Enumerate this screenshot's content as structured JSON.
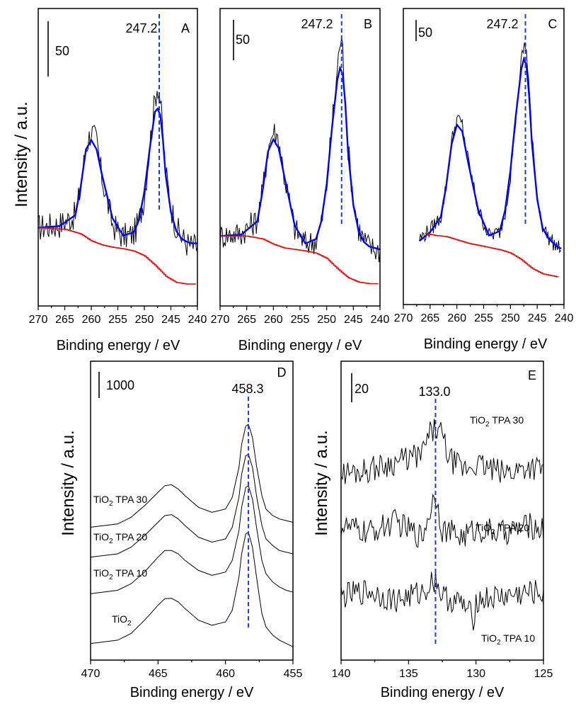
{
  "figure": {
    "ylabel": "Intensity / a.u.",
    "xlabel": "Binding energy / eV"
  },
  "chart_data": [
    {
      "id": "A",
      "type": "line",
      "panel_label": "A",
      "xlabel": "Binding energy / eV",
      "ylabel": "Intensity / a.u.",
      "xlim": [
        270,
        240
      ],
      "xticks": [
        270,
        265,
        260,
        255,
        250,
        245,
        240
      ],
      "scale_bar_label": "50",
      "peak_label": "247.2",
      "peak_x": 247.2,
      "series": [
        {
          "color": "#000000",
          "style": "raw spectrum",
          "x": [
            270,
            266,
            263,
            262,
            261,
            260,
            259,
            258,
            256,
            254,
            252,
            251,
            250,
            249,
            248,
            247.5,
            247,
            246.5,
            246,
            245,
            244,
            243,
            242,
            241,
            240
          ],
          "y": [
            10,
            12,
            18,
            35,
            62,
            72,
            65,
            42,
            12,
            4,
            6,
            14,
            30,
            62,
            92,
            102,
            92,
            68,
            46,
            24,
            10,
            4,
            0,
            -2,
            -2
          ]
        },
        {
          "color": "#0000ff",
          "style": "fitted envelope",
          "x": [
            270,
            266,
            263,
            262,
            261,
            260,
            259,
            258,
            256,
            254,
            252,
            251,
            250,
            249,
            248,
            247.5,
            247,
            246.5,
            246,
            245,
            244,
            243,
            242,
            241,
            240
          ],
          "y": [
            10,
            11,
            18,
            36,
            60,
            66,
            60,
            44,
            16,
            5,
            7,
            15,
            33,
            60,
            84,
            86,
            82,
            66,
            44,
            20,
            8,
            3,
            1,
            0,
            0
          ]
        },
        {
          "color": "#dd1111",
          "style": "background",
          "x": [
            270,
            265,
            262,
            260,
            258,
            256,
            254,
            252,
            250,
            248,
            246,
            244,
            242,
            240
          ],
          "y": [
            10,
            9,
            6,
            1.5,
            -1,
            -2.5,
            -3.5,
            -5,
            -8,
            -14,
            -21,
            -25,
            -26,
            -26
          ]
        }
      ]
    },
    {
      "id": "B",
      "type": "line",
      "panel_label": "B",
      "xlabel": "Binding energy / eV",
      "ylabel": "Intensity / a.u.",
      "xlim": [
        270,
        240
      ],
      "xticks": [
        270,
        265,
        260,
        255,
        250,
        245,
        240
      ],
      "scale_bar_label": "50",
      "peak_label": "247.2",
      "peak_x": 247.2,
      "series": [
        {
          "color": "#000000",
          "style": "raw spectrum",
          "x": [
            270,
            266,
            263,
            262,
            261,
            260,
            259,
            258,
            256,
            254,
            252,
            251,
            250,
            249,
            248,
            247.5,
            247,
            246.5,
            246,
            245,
            244,
            243,
            242,
            241,
            240
          ],
          "y": [
            7,
            9,
            18,
            38,
            66,
            78,
            72,
            48,
            12,
            2,
            4,
            15,
            40,
            82,
            118,
            140,
            132,
            100,
            66,
            32,
            12,
            4,
            0,
            -2,
            -3
          ]
        },
        {
          "color": "#0000ff",
          "style": "fitted envelope",
          "x": [
            270,
            266,
            263,
            262,
            261,
            260,
            259,
            258,
            256,
            254,
            252,
            251,
            250,
            249,
            248,
            247.5,
            247,
            246.5,
            246,
            245,
            244,
            243,
            242,
            241,
            240
          ],
          "y": [
            7,
            8,
            17,
            38,
            64,
            72,
            66,
            48,
            14,
            2,
            5,
            17,
            42,
            80,
            112,
            120,
            116,
            96,
            64,
            28,
            10,
            3,
            0,
            -1,
            -2
          ]
        },
        {
          "color": "#dd1111",
          "style": "background",
          "x": [
            270,
            265,
            262,
            260,
            258,
            256,
            254,
            252,
            250,
            248,
            246,
            244,
            242,
            240
          ],
          "y": [
            7,
            7,
            5,
            1.5,
            -1,
            -2,
            -3,
            -4.5,
            -8,
            -15,
            -21,
            -24,
            -25,
            -25
          ]
        }
      ]
    },
    {
      "id": "C",
      "type": "line",
      "panel_label": "C",
      "xlabel": "Binding energy / eV",
      "ylabel": "Intensity / a.u.",
      "xlim": [
        270,
        240
      ],
      "xticks": [
        270,
        265,
        260,
        255,
        250,
        245,
        240
      ],
      "scale_bar_label": "50",
      "peak_label": "247.2",
      "peak_x": 247.2,
      "series": [
        {
          "color": "#000000",
          "style": "raw spectrum",
          "x": [
            267,
            265,
            263,
            262,
            261,
            260,
            259,
            258,
            256,
            254,
            252,
            251,
            250,
            249,
            248,
            247.5,
            247,
            246.5,
            246,
            245,
            244,
            243,
            242,
            241,
            240.5
          ],
          "y": [
            0,
            8,
            20,
            48,
            88,
            110,
            104,
            74,
            26,
            3,
            6,
            24,
            58,
            110,
            160,
            176,
            172,
            138,
            92,
            40,
            12,
            2,
            -4,
            -8,
            -9
          ]
        },
        {
          "color": "#0000ff",
          "style": "fitted envelope",
          "x": [
            267,
            265,
            263,
            262,
            261,
            260,
            259,
            258,
            256,
            254,
            252,
            251,
            250,
            249,
            248,
            247.5,
            247,
            246.5,
            246,
            245,
            244,
            243,
            242,
            241,
            240.5
          ],
          "y": [
            -2,
            6,
            20,
            48,
            86,
            104,
            98,
            72,
            26,
            3,
            7,
            26,
            62,
            112,
            154,
            164,
            158,
            130,
            88,
            36,
            10,
            1,
            -4,
            -8,
            -9
          ]
        },
        {
          "color": "#dd1111",
          "style": "background",
          "x": [
            266,
            264,
            262,
            260,
            258,
            256,
            254,
            252,
            250,
            248,
            246,
            244,
            242,
            241
          ],
          "y": [
            5,
            3,
            2,
            -1,
            -4,
            -6,
            -8,
            -10,
            -13,
            -19,
            -27,
            -32,
            -34,
            -35
          ]
        }
      ]
    },
    {
      "id": "D",
      "type": "line",
      "panel_label": "D",
      "xlabel": "Binding energy / eV",
      "ylabel": "Intensity / a.u.",
      "xlim": [
        470,
        455
      ],
      "xticks": [
        470,
        465,
        460,
        455
      ],
      "scale_bar_label": "1000",
      "peak_label": "458.3",
      "peak_x": 458.3,
      "series": [
        {
          "name": "TiO2",
          "label_main": "TiO",
          "label_sub": "2",
          "label_rest": "",
          "color": "#000000",
          "x": [
            470,
            468,
            467,
            466,
            465,
            464.5,
            464,
            463.5,
            463,
            462,
            461,
            460,
            459.5,
            459,
            458.8,
            458.5,
            458.3,
            458,
            457.7,
            457.3,
            457,
            456.5,
            456,
            455.5,
            455
          ],
          "y": [
            0,
            100,
            300,
            700,
            1150,
            1350,
            1360,
            1250,
            1050,
            700,
            550,
            650,
            1000,
            2000,
            2700,
            3300,
            3350,
            2900,
            2000,
            900,
            500,
            250,
            100,
            0,
            -100
          ]
        },
        {
          "name": "TiO2 TPA 10",
          "label_main": "TiO",
          "label_sub": "2",
          "label_rest": " TPA 10",
          "color": "#000000",
          "x": [
            470,
            468,
            467,
            466,
            465,
            464.5,
            464,
            463.5,
            463,
            462,
            461,
            460,
            459.5,
            459,
            458.8,
            458.5,
            458.3,
            458,
            457.7,
            457.3,
            457,
            456.5,
            456,
            455.5,
            455
          ],
          "y": [
            1500,
            1600,
            1800,
            2150,
            2600,
            2800,
            2800,
            2700,
            2500,
            2200,
            2050,
            2150,
            2500,
            3400,
            4100,
            4700,
            4750,
            4350,
            3500,
            2500,
            2100,
            1850,
            1700,
            1600,
            1550
          ]
        },
        {
          "name": "TiO2 TPA 20",
          "label_main": "TiO",
          "label_sub": "2",
          "label_rest": " TPA 20",
          "color": "#000000",
          "x": [
            470,
            468,
            467,
            466,
            465,
            464.5,
            464,
            463.5,
            463,
            462,
            461,
            460,
            459.5,
            459,
            458.8,
            458.5,
            458.3,
            458,
            457.7,
            457.3,
            457,
            456.5,
            456,
            455.5,
            455
          ],
          "y": [
            2600,
            2700,
            2900,
            3250,
            3650,
            3850,
            3880,
            3750,
            3550,
            3200,
            3050,
            3150,
            3500,
            4400,
            5100,
            5650,
            5700,
            5300,
            4450,
            3550,
            3150,
            2950,
            2800,
            2750,
            2700
          ]
        },
        {
          "name": "TiO2 TPA 30",
          "label_main": "TiO",
          "label_sub": "2",
          "label_rest": " TPA 30",
          "color": "#000000",
          "x": [
            470,
            468,
            467,
            466,
            465,
            464.5,
            464,
            463.5,
            463,
            462,
            461,
            460,
            459.5,
            459,
            458.8,
            458.5,
            458.3,
            458,
            457.7,
            457.3,
            457,
            456.5,
            456,
            455.5,
            455
          ],
          "y": [
            3500,
            3600,
            3800,
            4150,
            4550,
            4750,
            4780,
            4650,
            4450,
            4100,
            3950,
            4050,
            4400,
            5300,
            6000,
            6550,
            6600,
            6200,
            5350,
            4450,
            4050,
            3850,
            3750,
            3700,
            3650
          ]
        }
      ]
    },
    {
      "id": "E",
      "type": "line",
      "panel_label": "E",
      "xlabel": "Binding energy / eV",
      "ylabel": "Intensity / a.u.",
      "xlim": [
        140,
        125
      ],
      "xticks": [
        140,
        135,
        130,
        125
      ],
      "scale_bar_label": "20",
      "peak_label": "133.0",
      "peak_x": 133.0,
      "series": [
        {
          "name": "TiO2 TPA 10",
          "label_main": "TiO",
          "label_sub": "2",
          "label_rest": " TPA 10",
          "color": "#000000",
          "x": [
            140,
            138,
            136,
            134,
            133.5,
            133,
            132.5,
            131,
            130.2,
            130,
            128,
            126,
            125
          ],
          "y": [
            4,
            7,
            2,
            6,
            10,
            14,
            4,
            0,
            -8,
            2,
            4,
            6,
            6
          ]
        },
        {
          "name": "TiO2 TPA 20",
          "label_main": "TiO",
          "label_sub": "2",
          "label_rest": " TPA 20",
          "color": "#000000",
          "x": [
            140,
            138,
            136,
            134,
            133.5,
            133,
            132.5,
            131,
            130,
            128,
            126,
            125
          ],
          "y": [
            42,
            38,
            44,
            36,
            48,
            60,
            40,
            36,
            40,
            38,
            42,
            40
          ]
        },
        {
          "name": "TiO2 TPA 30",
          "label_main": "TiO",
          "label_sub": "2",
          "label_rest": " TPA 30",
          "color": "#000000",
          "x": [
            140,
            138,
            136,
            134,
            133.5,
            133,
            132.5,
            132,
            131,
            130,
            128,
            126,
            125
          ],
          "y": [
            70,
            72,
            76,
            80,
            90,
            94,
            90,
            78,
            72,
            75,
            70,
            74,
            72
          ]
        }
      ]
    }
  ]
}
